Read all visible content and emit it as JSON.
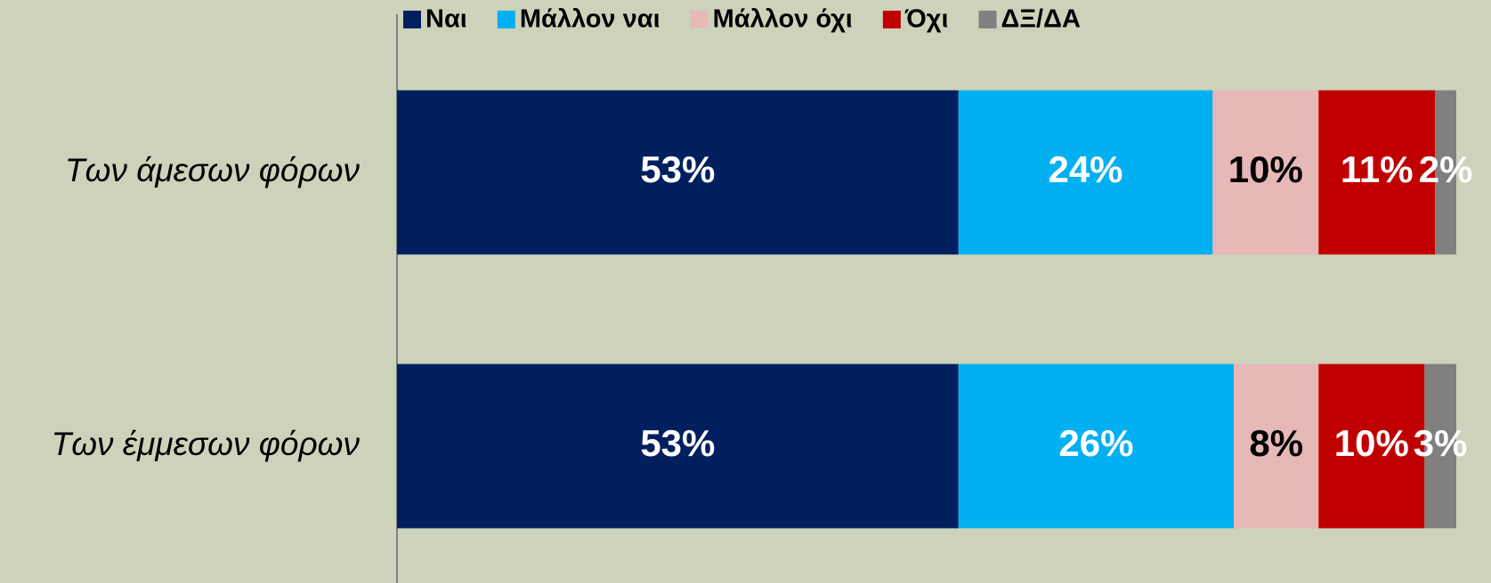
{
  "chart_data": {
    "type": "bar",
    "orientation": "horizontal",
    "stacked": true,
    "categories": [
      "Των άμεσων φόρων",
      "Των έμμεσων φόρων"
    ],
    "xlim": [
      0,
      100
    ],
    "legend": "top",
    "series": [
      {
        "name": "Ναι",
        "color": "#001f5f",
        "values": [
          53,
          53
        ],
        "value_labels": [
          "53%",
          "53%"
        ]
      },
      {
        "name": "Μάλλον ναι",
        "color": "#00b0f0",
        "values": [
          24,
          26
        ],
        "value_labels": [
          "24%",
          "26%"
        ]
      },
      {
        "name": "Μάλλον όχι",
        "color": "#e6b8b7",
        "values": [
          10,
          8
        ],
        "value_labels": [
          "10%",
          "8%"
        ]
      },
      {
        "name": "Όχι",
        "color": "#c00000",
        "values": [
          11,
          10
        ],
        "value_labels": [
          "11%",
          "10%"
        ]
      },
      {
        "name": "ΔΞ/ΔΑ",
        "color": "#808080",
        "values": [
          2,
          3
        ],
        "value_labels": [
          "2%",
          "3%"
        ]
      }
    ]
  }
}
